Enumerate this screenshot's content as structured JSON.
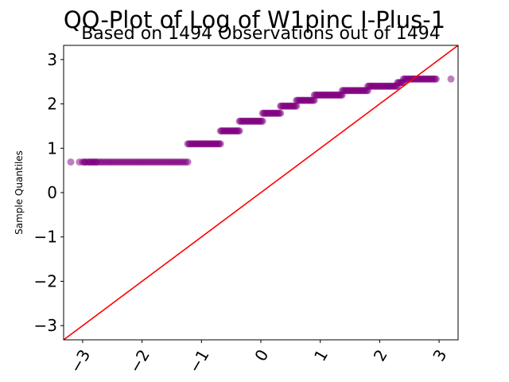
{
  "chart_data": {
    "type": "scatter",
    "title": "QQ-Plot of Log of W1pinc I-Plus-1",
    "subtitle": "Based on 1494 Observations out of 1494",
    "xlabel": "",
    "ylabel": "Sample Quantiles",
    "xlim": [
      -3.32,
      3.32
    ],
    "ylim": [
      -3.32,
      3.32
    ],
    "xticks": [
      -3,
      -2,
      -1,
      0,
      1,
      2,
      3
    ],
    "xtick_labels": [
      "−3",
      "−2",
      "−1",
      "0",
      "1",
      "2",
      "3"
    ],
    "yticks": [
      -3,
      -2,
      -1,
      0,
      1,
      2,
      3
    ],
    "ytick_labels": [
      "−3",
      "−2",
      "−1",
      "0",
      "1",
      "2",
      "3"
    ],
    "grid": false,
    "point_color": "#800080",
    "line_color": "#ff0000",
    "reference_line": {
      "slope": 1,
      "intercept": 0
    },
    "series": [
      {
        "levels": [
          {
            "y": 0.69,
            "x_from": -3.2,
            "x_to": -1.23
          },
          {
            "y": 1.1,
            "x_from": -1.23,
            "x_to": -0.68
          },
          {
            "y": 1.39,
            "x_from": -0.68,
            "x_to": -0.36
          },
          {
            "y": 1.61,
            "x_from": -0.36,
            "x_to": 0.03
          },
          {
            "y": 1.79,
            "x_from": 0.03,
            "x_to": 0.33
          },
          {
            "y": 1.95,
            "x_from": 0.33,
            "x_to": 0.6
          },
          {
            "y": 2.08,
            "x_from": 0.6,
            "x_to": 0.9
          },
          {
            "y": 2.2,
            "x_from": 0.9,
            "x_to": 1.37
          },
          {
            "y": 2.3,
            "x_from": 1.37,
            "x_to": 1.8
          },
          {
            "y": 2.4,
            "x_from": 1.8,
            "x_to": 2.3
          },
          {
            "y": 2.48,
            "x_from": 2.3,
            "x_to": 2.4
          },
          {
            "y": 2.56,
            "x_from": 2.4,
            "x_to": 2.95
          }
        ],
        "extra_points": [
          {
            "x": 3.2,
            "y": 2.56
          }
        ]
      }
    ]
  }
}
